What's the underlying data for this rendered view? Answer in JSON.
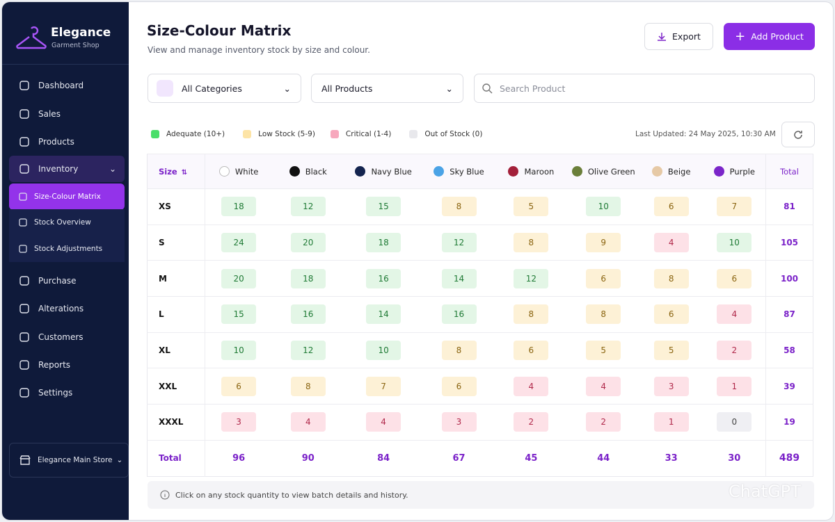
{
  "brand": {
    "name": "Elegance",
    "tagline": "Garment Shop"
  },
  "nav": {
    "top": [
      "Dashboard",
      "Sales",
      "Products"
    ],
    "group": {
      "label": "Inventory",
      "items": [
        "Size-Colour Matrix",
        "Stock Overview",
        "Stock Adjustments"
      ]
    },
    "bottom": [
      "Purchase",
      "Alterations",
      "Customers",
      "Reports",
      "Settings"
    ]
  },
  "store": "Elegance Main Store",
  "header": {
    "title": "Size-Colour Matrix",
    "subtitle": "View and manage inventory stock by size and colour."
  },
  "buttons": {
    "export": "Export",
    "add": "Add Product"
  },
  "filters": {
    "category": "All Categories",
    "product": "All Products",
    "search": "Search Product"
  },
  "legend": [
    {
      "label": "Adequate (10+)",
      "color": "#4ade6a"
    },
    {
      "label": "Low Stock (5-9)",
      "color": "#fde4a6"
    },
    {
      "label": "Critical (1-4)",
      "color": "#f7a8bd"
    },
    {
      "label": "Out of Stock (0)",
      "color": "#e8e8ec"
    }
  ],
  "last_updated": "Last Updated: 24 May 2025, 10:30 AM",
  "table": {
    "size_header": "Size",
    "total_header": "Total",
    "colors": [
      {
        "name": "White",
        "swatch": "#ffffff"
      },
      {
        "name": "Black",
        "swatch": "#111111"
      },
      {
        "name": "Navy Blue",
        "swatch": "#14244f"
      },
      {
        "name": "Sky Blue",
        "swatch": "#4ba3e6"
      },
      {
        "name": "Maroon",
        "swatch": "#a3203a"
      },
      {
        "name": "Olive Green",
        "swatch": "#6b7f3a"
      },
      {
        "name": "Beige",
        "swatch": "#e6c9a6"
      },
      {
        "name": "Purple",
        "swatch": "#7b26c9"
      }
    ],
    "rows": [
      {
        "size": "XS",
        "values": [
          18,
          12,
          15,
          8,
          5,
          10,
          6,
          7
        ],
        "total": 81
      },
      {
        "size": "S",
        "values": [
          24,
          20,
          18,
          12,
          8,
          9,
          4,
          10
        ],
        "total": 105
      },
      {
        "size": "M",
        "values": [
          20,
          18,
          16,
          14,
          12,
          6,
          8,
          6
        ],
        "total": 100
      },
      {
        "size": "L",
        "values": [
          15,
          16,
          14,
          16,
          8,
          8,
          6,
          4
        ],
        "total": 87
      },
      {
        "size": "XL",
        "values": [
          10,
          12,
          10,
          8,
          6,
          5,
          5,
          2
        ],
        "total": 58
      },
      {
        "size": "XXL",
        "values": [
          6,
          8,
          7,
          6,
          4,
          4,
          3,
          1
        ],
        "total": 39
      },
      {
        "size": "XXXL",
        "values": [
          3,
          4,
          4,
          3,
          2,
          2,
          1,
          0
        ],
        "total": 19
      }
    ],
    "totals_label": "Total",
    "totals": [
      96,
      90,
      84,
      67,
      45,
      44,
      33,
      30
    ],
    "grand_total": 489
  },
  "note": "Click on any stock quantity to view batch details and history.",
  "watermark": "ChatGPT"
}
